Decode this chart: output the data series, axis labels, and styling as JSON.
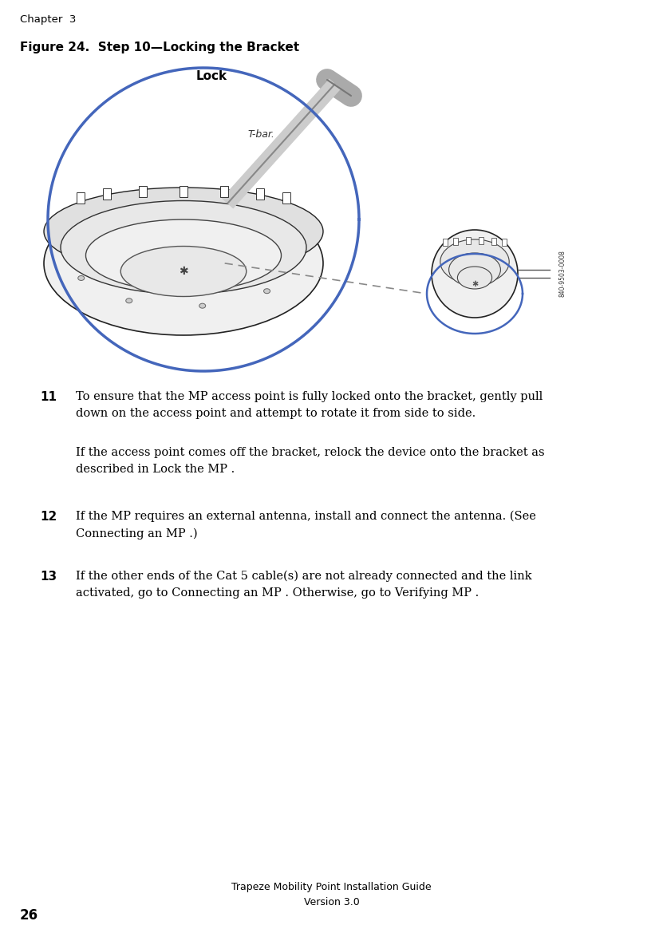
{
  "page_width": 8.31,
  "page_height": 11.59,
  "bg_color": "#ffffff",
  "chapter_text": "Chapter  3",
  "chapter_fontsize": 9.5,
  "figure_title": "Figure 24.  Step 10—Locking the Bracket",
  "figure_title_fontsize": 11,
  "footer_line1": "Trapeze Mobility Point Installation Guide",
  "footer_line2": "Version 3.0",
  "footer_fontsize": 9,
  "page_num": "26",
  "page_num_fontsize": 12,
  "step11_num": "11",
  "step11_text": "To ensure that the MP access point is fully locked onto the bracket, gently pull\ndown on the access point and attempt to rotate it from side to side.",
  "step11_sub": "If the access point comes off the bracket, relock the device onto the bracket as\ndescribed in Lock the MP .",
  "step12_num": "12",
  "step12_text": "If the MP requires an external antenna, install and connect the antenna. (See\nConnecting an MP .)",
  "step13_num": "13",
  "step13_text": "If the other ends of the Cat 5 cable(s) are not already connected and the link\nactivated, go to Connecting an MP . Otherwise, go to Verifying MP .",
  "text_fontsize": 10.5,
  "num_fontsize": 11,
  "serif_font": "DejaVu Serif",
  "sans_font": "DejaVu Sans",
  "lock_label": "Lock",
  "tbar_label": "T-bar.",
  "serial_label": "840-9503-0008"
}
